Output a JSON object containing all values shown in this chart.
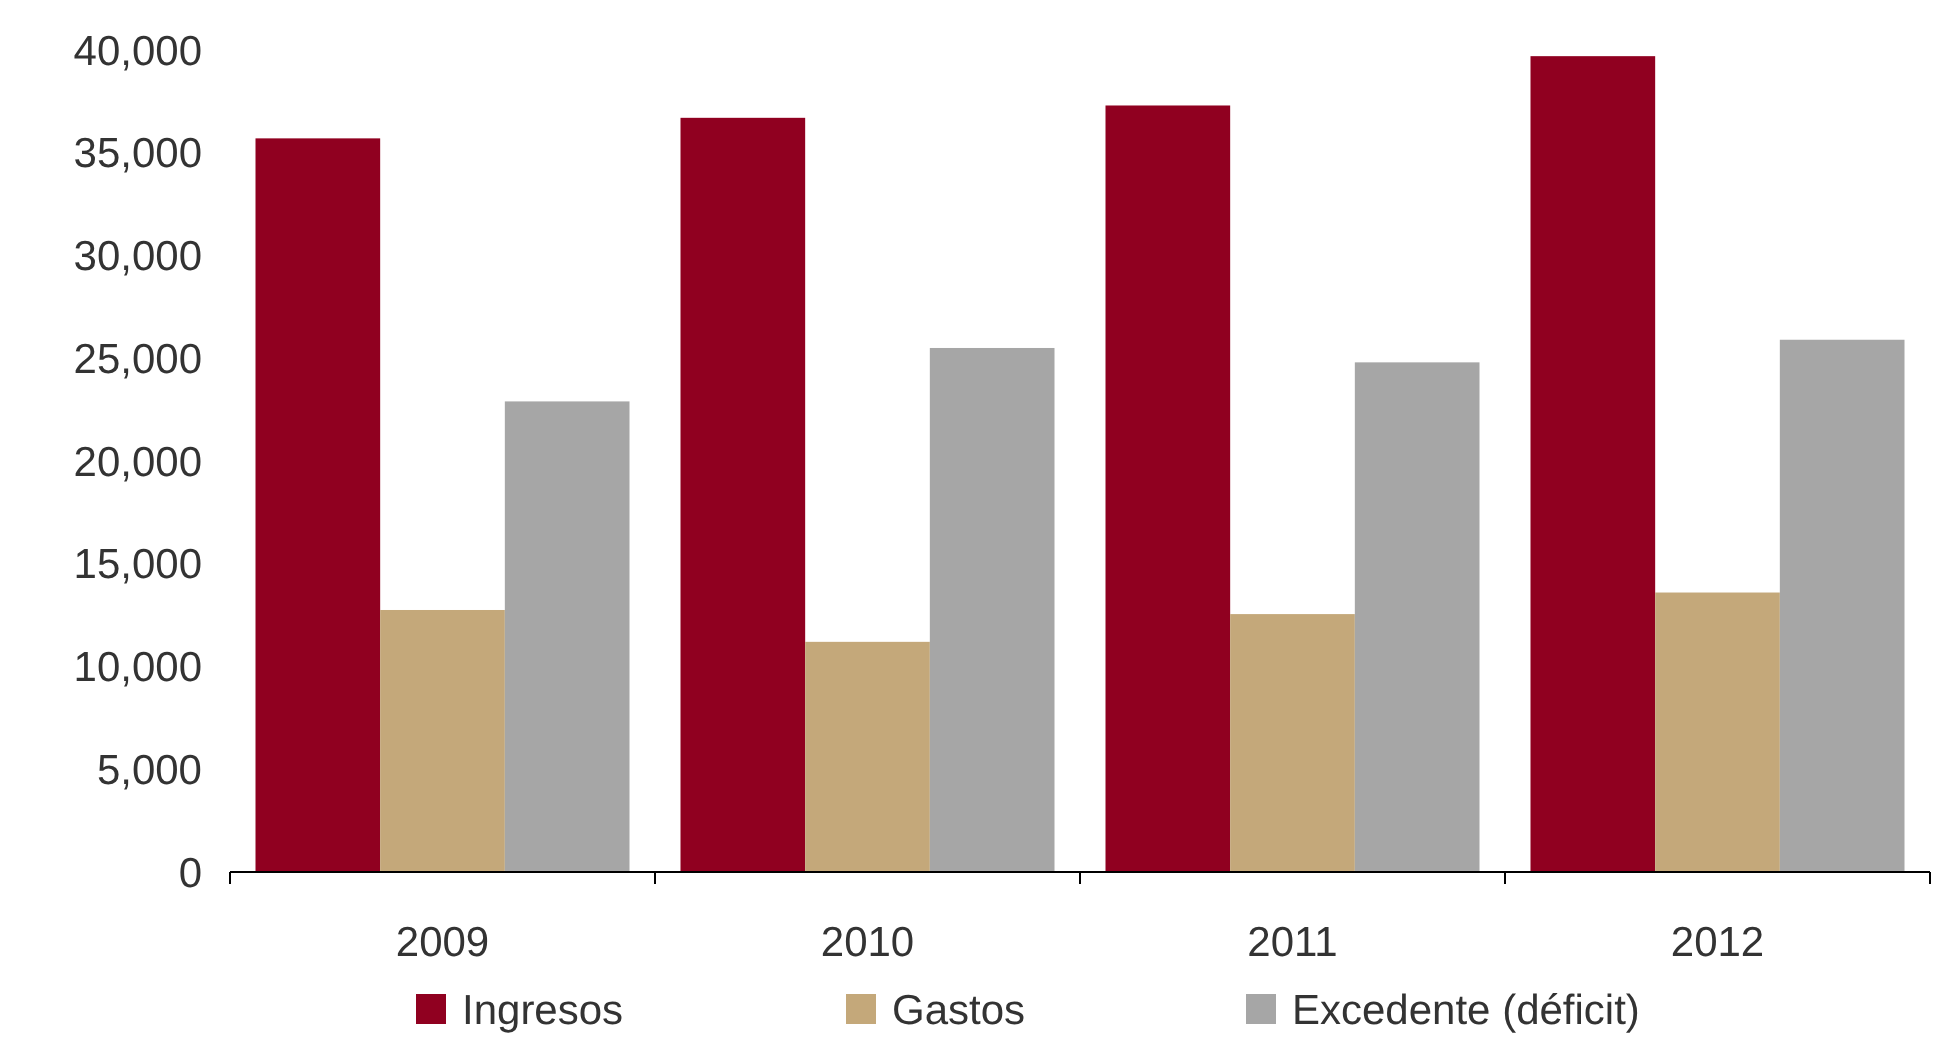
{
  "chart_data": {
    "type": "bar",
    "categories": [
      "2009",
      "2010",
      "2011",
      "2012"
    ],
    "series": [
      {
        "name": "Ingresos",
        "color": "#900020",
        "values": [
          35700,
          36700,
          37300,
          39700
        ]
      },
      {
        "name": "Gastos",
        "color": "#c4a87a",
        "values": [
          12750,
          11200,
          12550,
          13600
        ]
      },
      {
        "name": "Excedente (déficit)",
        "color": "#a6a6a6",
        "values": [
          22900,
          25500,
          24800,
          25900
        ]
      }
    ],
    "ylim": [
      0,
      40000
    ],
    "yticks": [
      {
        "value": 0,
        "label": "0"
      },
      {
        "value": 5000,
        "label": "5,000"
      },
      {
        "value": 10000,
        "label": "10,000"
      },
      {
        "value": 15000,
        "label": "15,000"
      },
      {
        "value": 20000,
        "label": "20,000"
      },
      {
        "value": 25000,
        "label": "25,000"
      },
      {
        "value": 30000,
        "label": "30,000"
      },
      {
        "value": 35000,
        "label": "35,000"
      },
      {
        "value": 40000,
        "label": "40,000"
      }
    ],
    "grid": false,
    "legend": "bottom"
  }
}
